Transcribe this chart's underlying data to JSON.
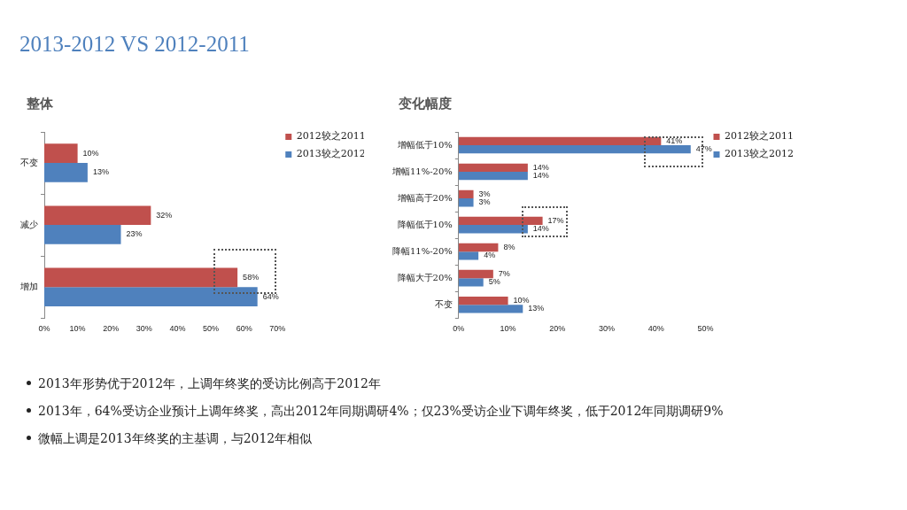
{
  "chart_data": [
    {
      "type": "other",
      "title": "2013-2012  VS  2012-2011",
      "annotations": [
        "2013年形势优于2012年，上调年终奖的受访比例高于2012年",
        "2013年，64%受访企业预计上调年终奖，高出2012年同期调研4%；仅23%受访企业下调年终奖，低于2012年同期调研9%",
        "微幅上调是2013年终奖的主基调，与2012年相似"
      ]
    },
    {
      "type": "bar",
      "orientation": "horizontal",
      "title": "整体",
      "categories": [
        "不变",
        "减少",
        "增加"
      ],
      "series": [
        {
          "name": "2012较之2011",
          "color": "#c0504d",
          "values": [
            10,
            32,
            58
          ],
          "value_labels": [
            "10%",
            "32%",
            "58%"
          ]
        },
        {
          "name": "2013较之2012",
          "color": "#4f81bd",
          "values": [
            13,
            23,
            64
          ],
          "value_labels": [
            "13%",
            "23%",
            "64%"
          ]
        }
      ],
      "xlim": [
        0,
        70
      ],
      "xticks": [
        {
          "value": 0,
          "label": "0%"
        },
        {
          "value": 10,
          "label": "10%"
        },
        {
          "value": 20,
          "label": "20%"
        },
        {
          "value": 30,
          "label": "30%"
        },
        {
          "value": 40,
          "label": "40%"
        },
        {
          "value": 50,
          "label": "50%"
        },
        {
          "value": 60,
          "label": "60%"
        },
        {
          "value": 70,
          "label": "70%"
        }
      ],
      "grid": false,
      "legend": "top right"
    },
    {
      "type": "bar",
      "orientation": "horizontal",
      "title": "变化幅度",
      "categories": [
        "增幅低于10%",
        "增幅11%-20%",
        "增幅高于20%",
        "降幅低于10%",
        "降幅11%-20%",
        "降幅大于20%",
        "不变"
      ],
      "series": [
        {
          "name": "2012较之2011",
          "color": "#c0504d",
          "values": [
            41,
            14,
            3,
            17,
            8,
            7,
            10
          ],
          "value_labels": [
            "41%",
            "14%",
            "3%",
            "17%",
            "8%",
            "7%",
            "10%"
          ]
        },
        {
          "name": "2013较之2012",
          "color": "#4f81bd",
          "values": [
            47,
            14,
            3,
            14,
            4,
            5,
            13
          ],
          "value_labels": [
            "47%",
            "14%",
            "3%",
            "14%",
            "4%",
            "5%",
            "13%"
          ]
        }
      ],
      "xlim": [
        0,
        50
      ],
      "xticks": [
        {
          "value": 0,
          "label": "0%"
        },
        {
          "value": 10,
          "label": "10%"
        },
        {
          "value": 20,
          "label": "20%"
        },
        {
          "value": 30,
          "label": "30%"
        },
        {
          "value": 40,
          "label": "40%"
        },
        {
          "value": 50,
          "label": "50%"
        }
      ],
      "grid": false,
      "legend": "top right"
    }
  ]
}
